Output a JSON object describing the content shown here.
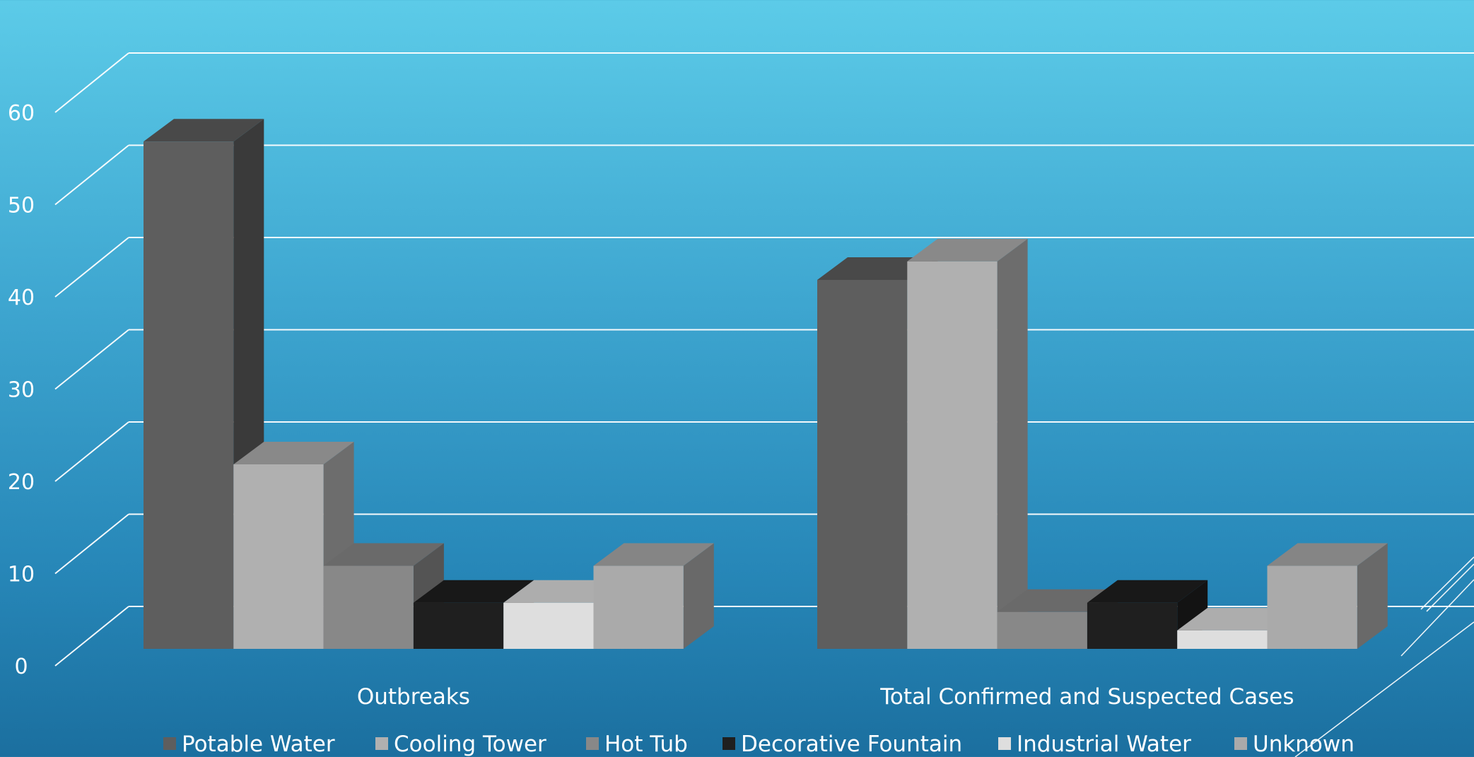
{
  "chart_data": {
    "type": "bar",
    "categories": [
      "Outbreaks",
      "Total Confirmed and Suspected Cases"
    ],
    "series": [
      {
        "name": "Potable Water",
        "values": [
          55,
          40
        ],
        "color": "#5e5e5e"
      },
      {
        "name": "Cooling Tower",
        "values": [
          20,
          42
        ],
        "color": "#b0b0b0"
      },
      {
        "name": "Hot Tub",
        "values": [
          9,
          4
        ],
        "color": "#888888"
      },
      {
        "name": "Decorative Fountain",
        "values": [
          5,
          5
        ],
        "color": "#1f1f1f"
      },
      {
        "name": "Industrial Water",
        "values": [
          5,
          2
        ],
        "color": "#dedede"
      },
      {
        "name": "Unknown",
        "values": [
          9,
          9
        ],
        "color": "#aaaaaa"
      }
    ],
    "y_ticks": [
      0,
      10,
      20,
      30,
      40,
      50,
      60
    ],
    "ylim": [
      0,
      60
    ],
    "grid": true,
    "three_d": true,
    "legend_position": "bottom"
  }
}
